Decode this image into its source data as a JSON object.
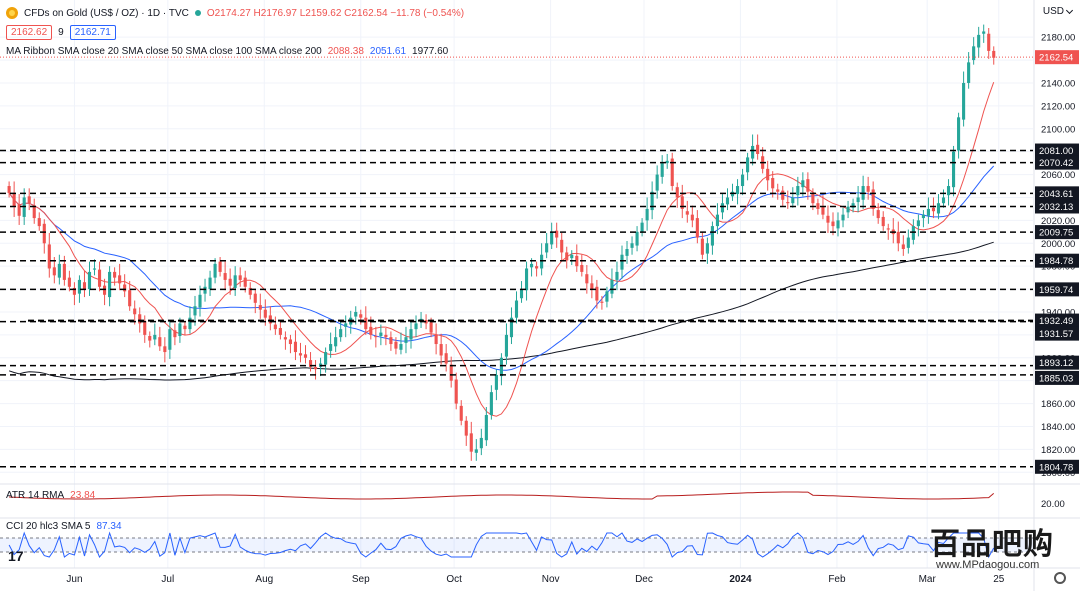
{
  "header": {
    "symbol_title": "CFDs on Gold (US$ / OZ) · 1D · TVC",
    "ohlc": "O2174.27 H2176.97 L2159.62 C2162.54 −11.78 (−0.54%)",
    "bid": "2162.62",
    "spread": "9",
    "ask": "2162.71",
    "currency": "USD"
  },
  "indicators": {
    "ma_label": "MA Ribbon SMA close 20 SMA close 50 SMA close 100 SMA close 200",
    "ma_values": [
      "2088.38",
      "2051.61",
      "1977.60"
    ],
    "atr_label": "ATR 14 RMA",
    "atr_value": "23.84",
    "cci_label": "CCI 20 hlc3 SMA 5",
    "cci_value": "87.34"
  },
  "colors": {
    "up": "#26a69a",
    "down": "#ef5350",
    "sma20": "#ef5350",
    "sma50": "#2962ff",
    "sma200": "#131722",
    "atr": "#b71c1c",
    "cci": "#2962ff",
    "cci_band": "#2962ff"
  },
  "watermark": {
    "cn": "百品吧购",
    "url": "www.MPdaogou.com"
  },
  "tradingview_logo": "17",
  "chart_data": {
    "type": "candlestick",
    "y_ticks": [
      1800,
      1820,
      1840,
      1860,
      1880,
      1900,
      1920,
      1940,
      1960,
      1980,
      2000,
      2020,
      2040,
      2060,
      2080,
      2100,
      2120,
      2140,
      2160,
      2180
    ],
    "ylim": [
      1795,
      2195
    ],
    "x_labels": [
      "Jun",
      "Jul",
      "Aug",
      "Sep",
      "Oct",
      "Nov",
      "Dec",
      "2024",
      "Feb",
      "Mar",
      "25"
    ],
    "x_label_days": [
      22,
      52,
      83,
      114,
      144,
      175,
      205,
      236,
      267,
      296,
      319
    ],
    "total_days": 330,
    "horizontal_levels": [
      {
        "value": 2081.0,
        "label": "2081.00"
      },
      {
        "value": 2070.42,
        "label": "2070.42"
      },
      {
        "value": 2043.61,
        "label": "2043.61"
      },
      {
        "value": 2032.13,
        "label": "2032.13"
      },
      {
        "value": 2009.75,
        "label": "2009.75"
      },
      {
        "value": 1984.78,
        "label": "1984.78"
      },
      {
        "value": 1959.74,
        "label": "1959.74"
      },
      {
        "value": 1932.49,
        "label": "1932.49"
      },
      {
        "value": 1931.57,
        "label": "1931.57"
      },
      {
        "value": 1893.12,
        "label": "1893.12"
      },
      {
        "value": 1885.03,
        "label": "1885.03"
      },
      {
        "value": 1804.78,
        "label": "1804.78"
      }
    ],
    "current_price": {
      "value": 2162.54,
      "label": "2162.54"
    },
    "closes": [
      2044,
      2032,
      2024,
      2040,
      2035,
      2022,
      2015,
      2000,
      1978,
      1972,
      1982,
      1968,
      1962,
      1955,
      1968,
      1960,
      1975,
      1978,
      1962,
      1955,
      1975,
      1970,
      1965,
      1958,
      1945,
      1938,
      1930,
      1920,
      1915,
      1920,
      1910,
      1905,
      1925,
      1918,
      1930,
      1925,
      1935,
      1945,
      1955,
      1962,
      1970,
      1982,
      1975,
      1968,
      1963,
      1972,
      1968,
      1962,
      1955,
      1948,
      1942,
      1935,
      1930,
      1925,
      1920,
      1916,
      1912,
      1905,
      1902,
      1900,
      1892,
      1890,
      1895,
      1905,
      1912,
      1918,
      1925,
      1930,
      1935,
      1940,
      1935,
      1925,
      1920,
      1918,
      1922,
      1918,
      1912,
      1908,
      1912,
      1918,
      1925,
      1930,
      1934,
      1930,
      1922,
      1912,
      1902,
      1895,
      1880,
      1860,
      1845,
      1832,
      1818,
      1820,
      1830,
      1850,
      1870,
      1885,
      1900,
      1920,
      1935,
      1950,
      1960,
      1978,
      1982,
      1978,
      1990,
      2000,
      2010,
      2005,
      1992,
      1985,
      1990,
      1980,
      1975,
      1965,
      1960,
      1950,
      1948,
      1958,
      1968,
      1975,
      1990,
      1995,
      2000,
      2010,
      2018,
      2030,
      2045,
      2060,
      2070,
      2072,
      2050,
      2040,
      2030,
      2025,
      2020,
      2005,
      1990,
      2000,
      2015,
      2025,
      2035,
      2040,
      2045,
      2050,
      2060,
      2075,
      2085,
      2078,
      2065,
      2055,
      2048,
      2045,
      2038,
      2035,
      2040,
      2050,
      2055,
      2045,
      2035,
      2030,
      2025,
      2018,
      2015,
      2020,
      2025,
      2032,
      2035,
      2040,
      2050,
      2045,
      2030,
      2022,
      2015,
      2012,
      2008,
      2000,
      1995,
      2005,
      2015,
      2020,
      2025,
      2030,
      2028,
      2035,
      2040,
      2050,
      2080,
      2110,
      2140,
      2158,
      2172,
      2182,
      2185,
      2168,
      2162
    ]
  }
}
